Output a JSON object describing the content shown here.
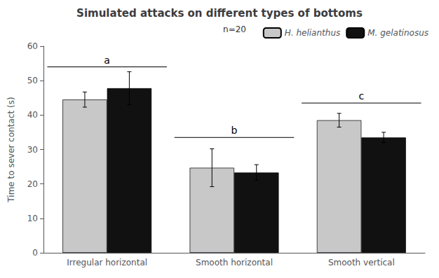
{
  "chart_data": {
    "type": "bar",
    "title": "Simulated attacks on different types of bottoms",
    "ylabel": "Time to sever contact (s)",
    "categories": [
      "Irregular horizontal",
      "Smooth horizontal",
      "Smooth vertical"
    ],
    "series": [
      {
        "name": "H. helianthus",
        "color": "#c8c8c8",
        "values": [
          44.5,
          24.7,
          38.5
        ],
        "errors": [
          2.2,
          5.5,
          2.0
        ]
      },
      {
        "name": "M. gelatinosus",
        "color": "#111111",
        "values": [
          47.8,
          23.3,
          33.5
        ],
        "errors": [
          4.8,
          2.3,
          1.5
        ]
      }
    ],
    "ylim": [
      0,
      60
    ],
    "yticks": [
      0,
      10,
      20,
      30,
      40,
      50,
      60
    ],
    "grid": false,
    "legend": "upper right",
    "annotations": [
      {
        "text": "a",
        "category": "Irregular horizontal",
        "y": 54.0
      },
      {
        "text": "b",
        "category": "Smooth horizontal",
        "y": 33.5
      },
      {
        "text": "c",
        "category": "Smooth vertical",
        "y": 43.5
      },
      {
        "text": "n=20"
      }
    ]
  }
}
